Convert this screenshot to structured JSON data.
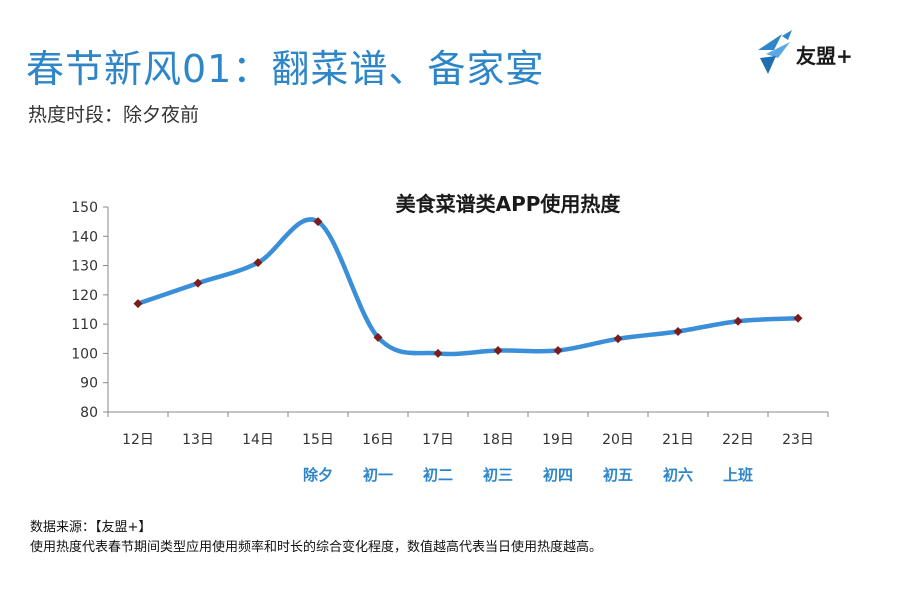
{
  "header": {
    "title": "春节新风01：翻菜谱、备家宴",
    "subtitle": "热度时段：除夕夜前"
  },
  "logo": {
    "text": "友盟+",
    "icon": "bird-logo-icon",
    "color": "#2e86c8"
  },
  "chart_data": {
    "type": "line",
    "title": "美食菜谱类APP使用热度",
    "categories": [
      "12日",
      "13日",
      "14日",
      "15日",
      "16日",
      "17日",
      "18日",
      "19日",
      "20日",
      "21日",
      "22日",
      "23日"
    ],
    "festival_labels": [
      "",
      "",
      "",
      "除夕",
      "初一",
      "初二",
      "初三",
      "初四",
      "初五",
      "初六",
      "上班",
      ""
    ],
    "values": [
      117,
      124,
      131,
      145,
      105.5,
      100,
      101,
      101,
      105,
      107.5,
      111,
      112
    ],
    "ylim": [
      80,
      150
    ],
    "yticks": [
      80,
      90,
      100,
      110,
      120,
      130,
      140,
      150
    ],
    "xlabel": "",
    "ylabel": "",
    "grid": false,
    "line_color": "#3a8fd8",
    "marker_color": "#7b1d1d",
    "label_color": "#2e86c8"
  },
  "footer": {
    "source": "数据来源：【友盟+】",
    "note": "使用热度代表春节期间类型应用使用频率和时长的综合变化程度，数值越高代表当日使用热度越高。"
  }
}
